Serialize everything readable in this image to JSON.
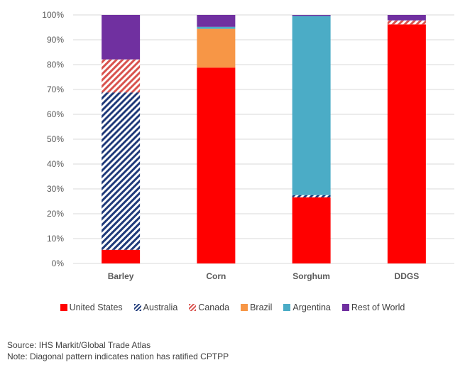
{
  "chart_data": {
    "type": "bar",
    "stacked": true,
    "percent_stacked": true,
    "title": "",
    "xlabel": "",
    "ylabel": "",
    "ylim": [
      0,
      100
    ],
    "yticks": [
      "0%",
      "10%",
      "20%",
      "30%",
      "40%",
      "50%",
      "60%",
      "70%",
      "80%",
      "90%",
      "100%"
    ],
    "grid": true,
    "legend_position": "bottom",
    "categories": [
      "Barley",
      "Corn",
      "Sorghum",
      "DDGS"
    ],
    "series": [
      {
        "name": "United States",
        "color": "#FF0000",
        "pattern": "solid",
        "values": [
          5.5,
          78.8,
          26.6,
          96.2
        ]
      },
      {
        "name": "Australia",
        "color": "#1F3A7A",
        "pattern": "diagonal",
        "values": [
          63.3,
          0,
          0.9,
          0
        ]
      },
      {
        "name": "Canada",
        "color": "#D9534F",
        "pattern": "diagonal",
        "values": [
          13.3,
          0,
          0,
          1.6
        ]
      },
      {
        "name": "Brazil",
        "color": "#F79646",
        "pattern": "solid",
        "values": [
          0,
          15.6,
          0,
          0
        ]
      },
      {
        "name": "Argentina",
        "color": "#4BACC6",
        "pattern": "solid",
        "values": [
          0,
          0.8,
          72.1,
          0
        ]
      },
      {
        "name": "Rest of World",
        "color": "#7030A0",
        "pattern": "solid",
        "values": [
          17.9,
          4.8,
          0.4,
          2.2
        ]
      }
    ]
  },
  "footer": {
    "source": "Source: IHS Markit/Global Trade Atlas",
    "note": "Note: Diagonal pattern indicates nation has ratified CPTPP"
  }
}
